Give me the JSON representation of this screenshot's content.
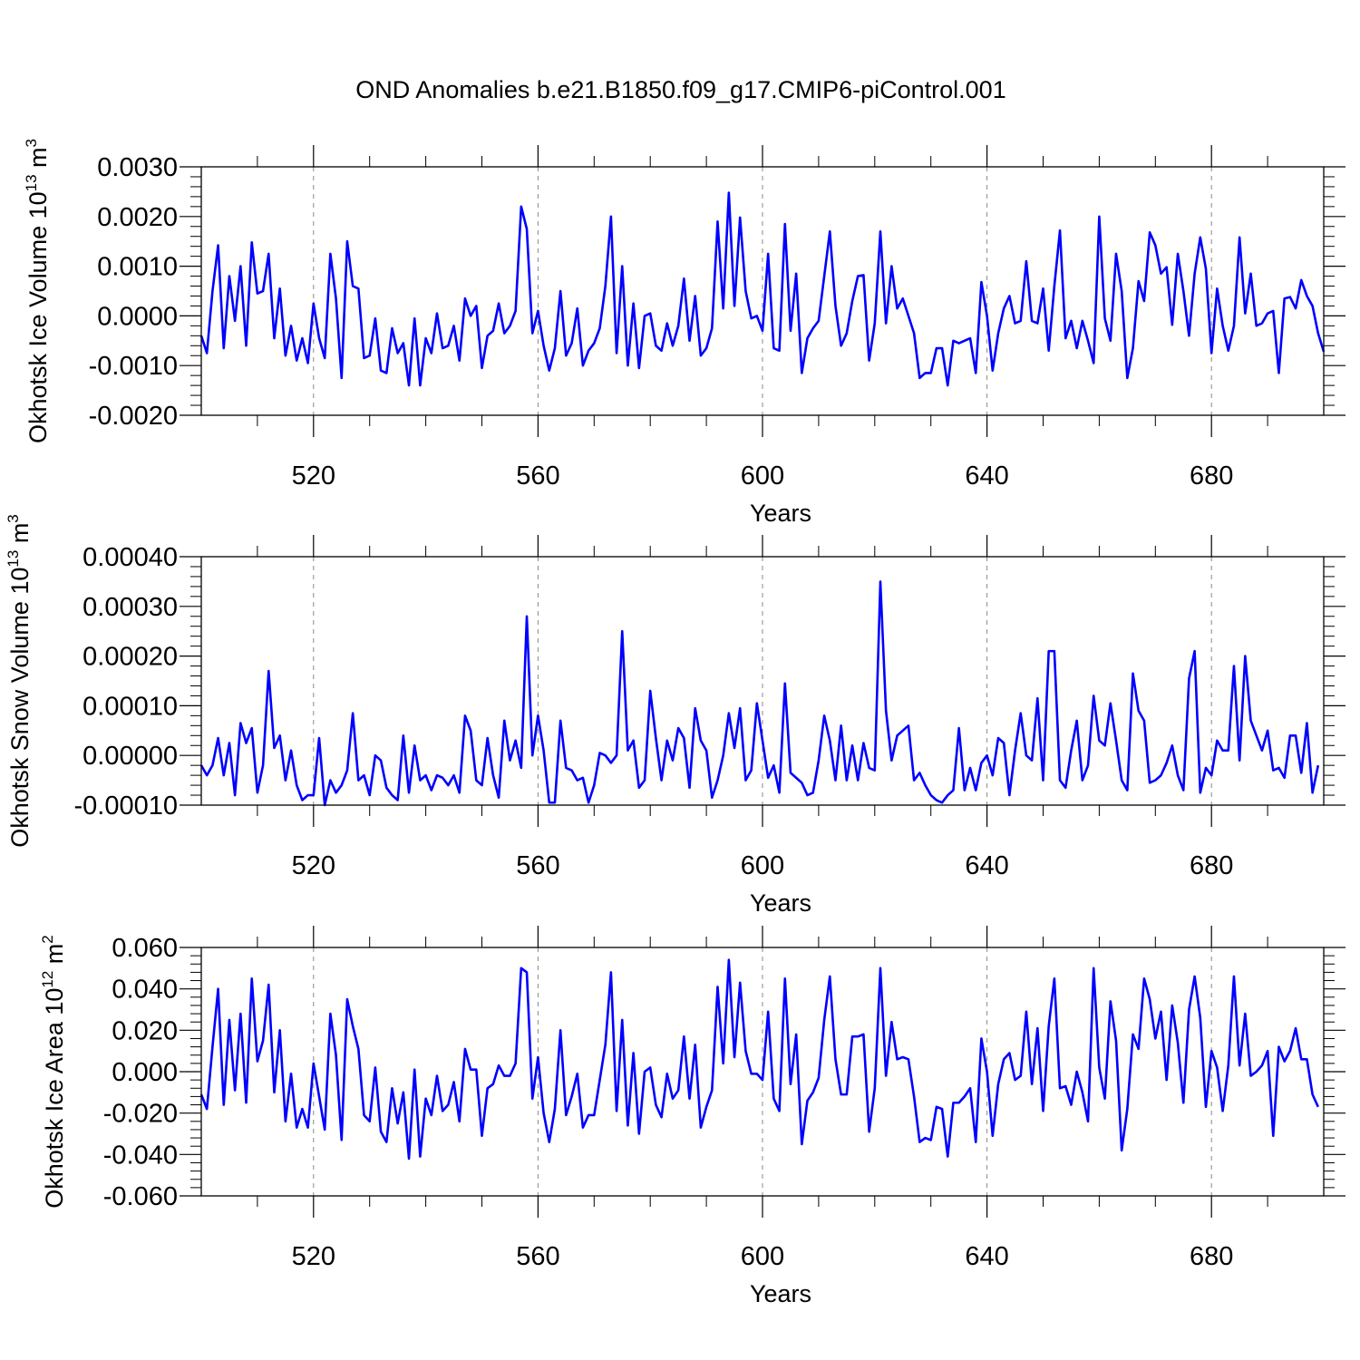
{
  "title": "OND Anomalies b.e21.B1850.f09_g17.CMIP6-piControl.001",
  "colors": {
    "line": "#0000ff",
    "axis": "#000000",
    "grid": "#888888"
  },
  "chart_data": [
    {
      "type": "line",
      "ylabel": "Okhotsk Ice Volume 10",
      "yunit_exp": "13",
      "yunit_suffix": " m",
      "yunit_sup": "3",
      "xlabel": "Years",
      "xlim": [
        500,
        700
      ],
      "ylim": [
        -0.002,
        0.003
      ],
      "yticks": [
        -0.002,
        -0.001,
        0.0,
        0.001,
        0.002,
        0.003
      ],
      "ytick_labels": [
        "-0.0020",
        "-0.0010",
        "0.0000",
        "0.0010",
        "0.0020",
        "0.0030"
      ],
      "xticks": [
        520,
        560,
        600,
        640,
        680
      ],
      "xtick_labels": [
        "520",
        "560",
        "600",
        "640",
        "680"
      ],
      "grid_x": true,
      "x_start": 500,
      "values": [
        -0.0004,
        -0.00075,
        0.0005,
        0.00142,
        -0.00065,
        0.0008,
        -0.0001,
        0.001,
        -0.0006,
        0.00148,
        0.00045,
        0.0005,
        0.00125,
        -0.00045,
        0.00055,
        -0.0008,
        -0.0002,
        -0.0009,
        -0.00045,
        -0.00095,
        0.00025,
        -0.00045,
        -0.00085,
        0.00125,
        0.00035,
        -0.00125,
        0.0015,
        0.0006,
        0.00055,
        -0.00085,
        -0.0008,
        -5e-05,
        -0.0011,
        -0.00115,
        -0.00025,
        -0.00075,
        -0.00055,
        -0.0014,
        -5e-05,
        -0.0014,
        -0.00045,
        -0.00075,
        5e-05,
        -0.00065,
        -0.0006,
        -0.0002,
        -0.0009,
        0.00035,
        0.0,
        0.0002,
        -0.00105,
        -0.0004,
        -0.0003,
        0.00025,
        -0.00035,
        -0.0002,
        0.0001,
        0.0022,
        0.00175,
        -0.00035,
        0.0001,
        -0.0006,
        -0.0011,
        -0.00065,
        0.0005,
        -0.0008,
        -0.00055,
        0.00015,
        -0.001,
        -0.0007,
        -0.00055,
        -0.00025,
        0.0006,
        0.002,
        -0.00075,
        0.001,
        -0.001,
        0.00025,
        -0.00105,
        0.0,
        5e-05,
        -0.0006,
        -0.0007,
        -0.00015,
        -0.0006,
        -0.0002,
        0.00075,
        -0.0005,
        0.0004,
        -0.0008,
        -0.00065,
        -0.00025,
        0.0019,
        0.00015,
        0.00248,
        0.0002,
        0.00198,
        0.0005,
        -5e-05,
        0.0,
        -0.0003,
        0.00125,
        -0.00065,
        -0.0007,
        0.00185,
        -0.0003,
        0.00085,
        -0.00115,
        -0.00045,
        -0.00025,
        -0.0001,
        0.0008,
        0.0017,
        0.0002,
        -0.0006,
        -0.00035,
        0.0003,
        0.0008,
        0.00082,
        -0.0009,
        -0.00015,
        0.0017,
        -0.00015,
        0.001,
        0.00015,
        0.00035,
        0.0,
        -0.00035,
        -0.00125,
        -0.00115,
        -0.00115,
        -0.00065,
        -0.00065,
        -0.0014,
        -0.0005,
        -0.00055,
        -0.0005,
        -0.00045,
        -0.00115,
        0.00068,
        0.0,
        -0.0011,
        -0.00035,
        0.00015,
        0.0004,
        -0.00015,
        -0.0001,
        0.0011,
        -0.0001,
        -0.00015,
        0.00055,
        -0.0007,
        0.0006,
        0.00172,
        -0.00045,
        -0.0001,
        -0.00065,
        -0.0001,
        -0.0005,
        -0.00095,
        0.002,
        -5e-05,
        -0.0005,
        0.00125,
        0.0005,
        -0.00125,
        -0.00065,
        0.0007,
        0.0003,
        0.00168,
        0.00142,
        0.00085,
        0.00098,
        -0.00018,
        0.00125,
        0.0005,
        -0.0004,
        0.00085,
        0.00158,
        0.00095,
        -0.00075,
        0.00055,
        -0.0002,
        -0.0007,
        -0.0002,
        0.00158,
        5e-05,
        0.00085,
        -0.0002,
        -0.00015,
        5e-05,
        0.0001,
        -0.00115,
        0.00035,
        0.00038,
        0.00015,
        0.00072,
        0.0004,
        0.0002,
        -0.00035,
        -0.00072
      ]
    },
    {
      "type": "line",
      "ylabel": "Okhotsk Snow Volume 10",
      "yunit_exp": "13",
      "yunit_suffix": " m",
      "yunit_sup": "3",
      "xlabel": "Years",
      "xlim": [
        500,
        700
      ],
      "ylim": [
        -0.0001,
        0.0004
      ],
      "yticks": [
        -0.0001,
        0.0,
        0.0001,
        0.0002,
        0.0003,
        0.0004
      ],
      "ytick_labels": [
        "-0.00010",
        "0.00000",
        "0.00010",
        "0.00020",
        "0.00030",
        "0.00040"
      ],
      "xticks": [
        520,
        560,
        600,
        640,
        680
      ],
      "xtick_labels": [
        "520",
        "560",
        "600",
        "640",
        "680"
      ],
      "grid_x": true,
      "x_start": 500,
      "values": [
        -2e-05,
        -4e-05,
        -2e-05,
        3.5e-05,
        -4e-05,
        2.5e-05,
        -8e-05,
        6.5e-05,
        2.5e-05,
        5.5e-05,
        -7.5e-05,
        -2e-05,
        0.00017,
        1.5e-05,
        4e-05,
        -5e-05,
        1e-05,
        -6e-05,
        -9e-05,
        -8e-05,
        -8e-05,
        3.5e-05,
        -0.0001,
        -5e-05,
        -7.5e-05,
        -6e-05,
        -3e-05,
        8.5e-05,
        -5e-05,
        -4e-05,
        -8e-05,
        0.0,
        -1e-05,
        -6.5e-05,
        -8e-05,
        -9e-05,
        4e-05,
        -7.5e-05,
        2e-05,
        -5e-05,
        -4e-05,
        -7e-05,
        -4e-05,
        -4.5e-05,
        -6e-05,
        -4e-05,
        -7.5e-05,
        8e-05,
        5e-05,
        -5e-05,
        -6e-05,
        3.5e-05,
        -4e-05,
        -8.5e-05,
        7e-05,
        -1e-05,
        3e-05,
        -2.5e-05,
        0.00028,
        0.0,
        8e-05,
        1e-05,
        -9.5e-05,
        -9.5e-05,
        7e-05,
        -2.5e-05,
        -3e-05,
        -5e-05,
        -4.5e-05,
        -9.5e-05,
        -6e-05,
        5e-06,
        0.0,
        -1.5e-05,
        0.0,
        0.00025,
        1e-05,
        3e-05,
        -6.5e-05,
        -5e-05,
        0.00013,
        3.5e-05,
        -5e-05,
        3e-05,
        -1e-05,
        5.5e-05,
        3.5e-05,
        -6.5e-05,
        9.5e-05,
        3e-05,
        1e-05,
        -8.5e-05,
        -5e-05,
        0.0,
        8.5e-05,
        1.5e-05,
        9.5e-05,
        -5e-05,
        -3e-05,
        0.000105,
        3e-05,
        -4.5e-05,
        -2e-05,
        -7.5e-05,
        0.000145,
        -3.5e-05,
        -4.5e-05,
        -5.5e-05,
        -8e-05,
        -7.5e-05,
        -1e-05,
        8e-05,
        3e-05,
        -5e-05,
        6e-05,
        -5e-05,
        2e-05,
        -5e-05,
        2.5e-05,
        -2.5e-05,
        -3e-05,
        0.00035,
        9e-05,
        -1e-05,
        4e-05,
        5e-05,
        6e-05,
        -5e-05,
        -3.5e-05,
        -6e-05,
        -8e-05,
        -9e-05,
        -9.5e-05,
        -8e-05,
        -7e-05,
        5.5e-05,
        -7e-05,
        -2.5e-05,
        -7e-05,
        -1.5e-05,
        0.0,
        -4e-05,
        3.5e-05,
        2.5e-05,
        -8e-05,
        1e-05,
        8.5e-05,
        0.0,
        -1e-05,
        0.000115,
        -5e-05,
        0.00021,
        0.00021,
        -5e-05,
        -6.5e-05,
        1e-05,
        7e-05,
        -5e-05,
        -2e-05,
        0.00012,
        3e-05,
        2e-05,
        0.000105,
        3e-05,
        -5e-05,
        -7e-05,
        0.000165,
        9e-05,
        7e-05,
        -5.5e-05,
        -5e-05,
        -4e-05,
        -1.5e-05,
        2e-05,
        -4e-05,
        -7e-05,
        0.000155,
        0.00021,
        -7.5e-05,
        -2.5e-05,
        -4e-05,
        3e-05,
        1e-05,
        1e-05,
        0.00018,
        -1e-05,
        0.0002,
        7e-05,
        4e-05,
        1e-05,
        5e-05,
        -3e-05,
        -2.5e-05,
        -4.5e-05,
        4e-05,
        4e-05,
        -3.5e-05,
        6.5e-05,
        -7.5e-05,
        -2e-05
      ]
    },
    {
      "type": "line",
      "ylabel": "Okhotsk Ice Area 10",
      "yunit_exp": "12",
      "yunit_suffix": " m",
      "yunit_sup": "2",
      "xlabel": "Years",
      "xlim": [
        500,
        700
      ],
      "ylim": [
        -0.06,
        0.06
      ],
      "yticks": [
        -0.06,
        -0.04,
        -0.02,
        0.0,
        0.02,
        0.04,
        0.06
      ],
      "ytick_labels": [
        "-0.060",
        "-0.040",
        "-0.020",
        "0.000",
        "0.020",
        "0.040",
        "0.060"
      ],
      "xticks": [
        520,
        560,
        600,
        640,
        680
      ],
      "xtick_labels": [
        "520",
        "560",
        "600",
        "640",
        "680"
      ],
      "grid_x": true,
      "x_start": 500,
      "values": [
        -0.011,
        -0.018,
        0.012,
        0.04,
        -0.016,
        0.025,
        -0.009,
        0.028,
        -0.015,
        0.045,
        0.005,
        0.015,
        0.042,
        -0.01,
        0.02,
        -0.024,
        -0.001,
        -0.027,
        -0.018,
        -0.027,
        0.004,
        -0.012,
        -0.028,
        0.028,
        0.008,
        -0.033,
        0.035,
        0.022,
        0.011,
        -0.021,
        -0.024,
        0.002,
        -0.029,
        -0.034,
        -0.008,
        -0.025,
        -0.01,
        -0.042,
        0.001,
        -0.041,
        -0.013,
        -0.021,
        -0.002,
        -0.019,
        -0.016,
        -0.005,
        -0.024,
        0.011,
        0.001,
        0.001,
        -0.031,
        -0.008,
        -0.006,
        0.003,
        -0.002,
        -0.002,
        0.004,
        0.05,
        0.048,
        -0.013,
        0.007,
        -0.02,
        -0.034,
        -0.018,
        0.02,
        -0.021,
        -0.012,
        -0.001,
        -0.027,
        -0.021,
        -0.021,
        -0.004,
        0.013,
        0.048,
        -0.019,
        0.025,
        -0.026,
        0.009,
        -0.03,
        0.0,
        0.002,
        -0.016,
        -0.022,
        -0.001,
        -0.013,
        -0.009,
        0.017,
        -0.013,
        0.013,
        -0.027,
        -0.017,
        -0.009,
        0.041,
        0.004,
        0.054,
        0.007,
        0.043,
        0.01,
        -0.001,
        -0.001,
        -0.004,
        0.029,
        -0.013,
        -0.019,
        0.045,
        -0.006,
        0.018,
        -0.035,
        -0.014,
        -0.01,
        -0.003,
        0.025,
        0.046,
        0.006,
        -0.011,
        -0.011,
        0.017,
        0.017,
        0.018,
        -0.029,
        -0.008,
        0.05,
        -0.002,
        0.024,
        0.006,
        0.007,
        0.006,
        -0.012,
        -0.034,
        -0.032,
        -0.033,
        -0.017,
        -0.018,
        -0.041,
        -0.015,
        -0.015,
        -0.012,
        -0.008,
        -0.034,
        0.016,
        0.0,
        -0.031,
        -0.006,
        0.006,
        0.009,
        -0.004,
        -0.002,
        0.029,
        -0.006,
        0.021,
        -0.019,
        0.022,
        0.045,
        -0.008,
        -0.007,
        -0.016,
        0.0,
        -0.01,
        -0.024,
        0.05,
        0.002,
        -0.013,
        0.034,
        0.015,
        -0.038,
        -0.018,
        0.018,
        0.011,
        0.045,
        0.035,
        0.016,
        0.029,
        -0.004,
        0.032,
        0.014,
        -0.015,
        0.03,
        0.046,
        0.026,
        -0.017,
        0.01,
        0.002,
        -0.019,
        0.003,
        0.046,
        0.003,
        0.028,
        -0.002,
        0.0,
        0.003,
        0.01,
        -0.031,
        0.012,
        0.005,
        0.01,
        0.021,
        0.006,
        0.006,
        -0.011,
        -0.017
      ]
    }
  ]
}
